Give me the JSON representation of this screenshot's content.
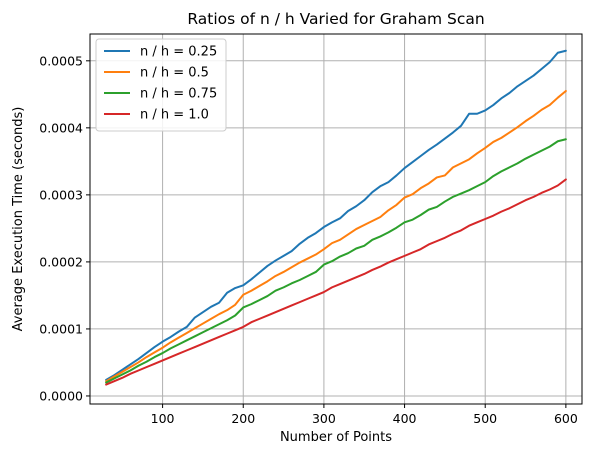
{
  "chart_data": {
    "type": "line",
    "title": "Ratios of n / h Varied for Graham Scan",
    "xlabel": "Number of Points",
    "ylabel": "Average Execution Time (seconds)",
    "xlim": [
      10,
      620
    ],
    "ylim": [
      -1.2e-05,
      0.00054
    ],
    "xticks": [
      100,
      200,
      300,
      400,
      500,
      600
    ],
    "xtick_labels": [
      "100",
      "200",
      "300",
      "400",
      "500",
      "600"
    ],
    "yticks": [
      0.0,
      0.0001,
      0.0002,
      0.0003,
      0.0004,
      0.0005
    ],
    "ytick_labels": [
      "0.0000",
      "0.0001",
      "0.0002",
      "0.0003",
      "0.0004",
      "0.0005"
    ],
    "grid": true,
    "legend_position": "upper-left",
    "x": [
      30,
      40,
      50,
      60,
      70,
      80,
      90,
      100,
      110,
      120,
      130,
      140,
      150,
      160,
      170,
      180,
      190,
      200,
      210,
      220,
      230,
      240,
      250,
      260,
      270,
      280,
      290,
      300,
      310,
      320,
      330,
      340,
      350,
      360,
      370,
      380,
      390,
      400,
      410,
      420,
      430,
      440,
      450,
      460,
      470,
      480,
      490,
      500,
      510,
      520,
      530,
      540,
      550,
      560,
      570,
      580,
      590,
      600
    ],
    "series": [
      {
        "name": "n / h = 0.25",
        "color": "#1f77b4",
        "values": [
          2.4e-05,
          3.1e-05,
          3.9e-05,
          4.7e-05,
          5.5e-05,
          6.4e-05,
          7.3e-05,
          8.1e-05,
          8.8e-05,
          9.6e-05,
          0.000103,
          0.000117,
          0.000125,
          0.000133,
          0.000139,
          0.000154,
          0.000161,
          0.000165,
          0.000174,
          0.000184,
          0.000194,
          0.000202,
          0.000209,
          0.000216,
          0.000227,
          0.000236,
          0.000243,
          0.000252,
          0.000259,
          0.000265,
          0.000276,
          0.000283,
          0.000292,
          0.000304,
          0.000313,
          0.000319,
          0.000329,
          0.00034,
          0.000349,
          0.000358,
          0.000367,
          0.000375,
          0.000384,
          0.000393,
          0.000403,
          0.000421,
          0.000421,
          0.000426,
          0.000434,
          0.000444,
          0.000452,
          0.000462,
          0.00047,
          0.000478,
          0.000488,
          0.000498,
          0.000512,
          0.000515
        ]
      },
      {
        "name": "n / h = 0.5",
        "color": "#ff7f0e",
        "values": [
          2.2e-05,
          2.9e-05,
          3.6e-05,
          4.3e-05,
          5e-05,
          5.8e-05,
          6.5e-05,
          7.2e-05,
          8e-05,
          8.7e-05,
          9.4e-05,
          0.000101,
          0.000108,
          0.000115,
          0.000122,
          0.000128,
          0.000136,
          0.000151,
          0.000157,
          0.000164,
          0.000171,
          0.000179,
          0.000185,
          0.000192,
          0.000199,
          0.000205,
          0.000211,
          0.000219,
          0.000228,
          0.000233,
          0.000241,
          0.000249,
          0.000255,
          0.000261,
          0.000267,
          0.000277,
          0.000285,
          0.000296,
          0.000301,
          0.00031,
          0.000317,
          0.000326,
          0.000329,
          0.000341,
          0.000347,
          0.000353,
          0.000362,
          0.00037,
          0.000379,
          0.000385,
          0.000393,
          0.000401,
          0.00041,
          0.000418,
          0.000427,
          0.000434,
          0.000445,
          0.000455
        ]
      },
      {
        "name": "n / h = 0.75",
        "color": "#2ca02c",
        "values": [
          2e-05,
          2.6e-05,
          3.2e-05,
          3.8e-05,
          4.5e-05,
          5.1e-05,
          5.8e-05,
          6.4e-05,
          7.1e-05,
          7.7e-05,
          8.3e-05,
          8.9e-05,
          9.5e-05,
          0.000101,
          0.000107,
          0.000113,
          0.00012,
          0.000132,
          0.000137,
          0.000143,
          0.000149,
          0.000157,
          0.000162,
          0.000168,
          0.000173,
          0.000179,
          0.000185,
          0.000196,
          0.000201,
          0.000208,
          0.000213,
          0.00022,
          0.000224,
          0.000233,
          0.000238,
          0.000244,
          0.000251,
          0.000259,
          0.000263,
          0.00027,
          0.000278,
          0.000282,
          0.00029,
          0.000297,
          0.000302,
          0.000307,
          0.000313,
          0.000319,
          0.000328,
          0.000335,
          0.000341,
          0.000347,
          0.000354,
          0.00036,
          0.000366,
          0.000372,
          0.00038,
          0.000383
        ]
      },
      {
        "name": "n / h = 1.0",
        "color": "#d62728",
        "values": [
          1.7e-05,
          2.2e-05,
          2.7e-05,
          3.3e-05,
          3.8e-05,
          4.3e-05,
          4.8e-05,
          5.3e-05,
          5.8e-05,
          6.3e-05,
          6.8e-05,
          7.3e-05,
          7.8e-05,
          8.3e-05,
          8.8e-05,
          9.3e-05,
          9.8e-05,
          0.000103,
          0.00011,
          0.000115,
          0.00012,
          0.000125,
          0.00013,
          0.000135,
          0.00014,
          0.000145,
          0.00015,
          0.000155,
          0.000162,
          0.000167,
          0.000172,
          0.000177,
          0.000182,
          0.000188,
          0.000193,
          0.000199,
          0.000204,
          0.000209,
          0.000214,
          0.000219,
          0.000226,
          0.000231,
          0.000236,
          0.000242,
          0.000247,
          0.000254,
          0.000259,
          0.000264,
          0.000269,
          0.000275,
          0.00028,
          0.000286,
          0.000292,
          0.000297,
          0.000303,
          0.000308,
          0.000314,
          0.000323
        ]
      }
    ]
  }
}
